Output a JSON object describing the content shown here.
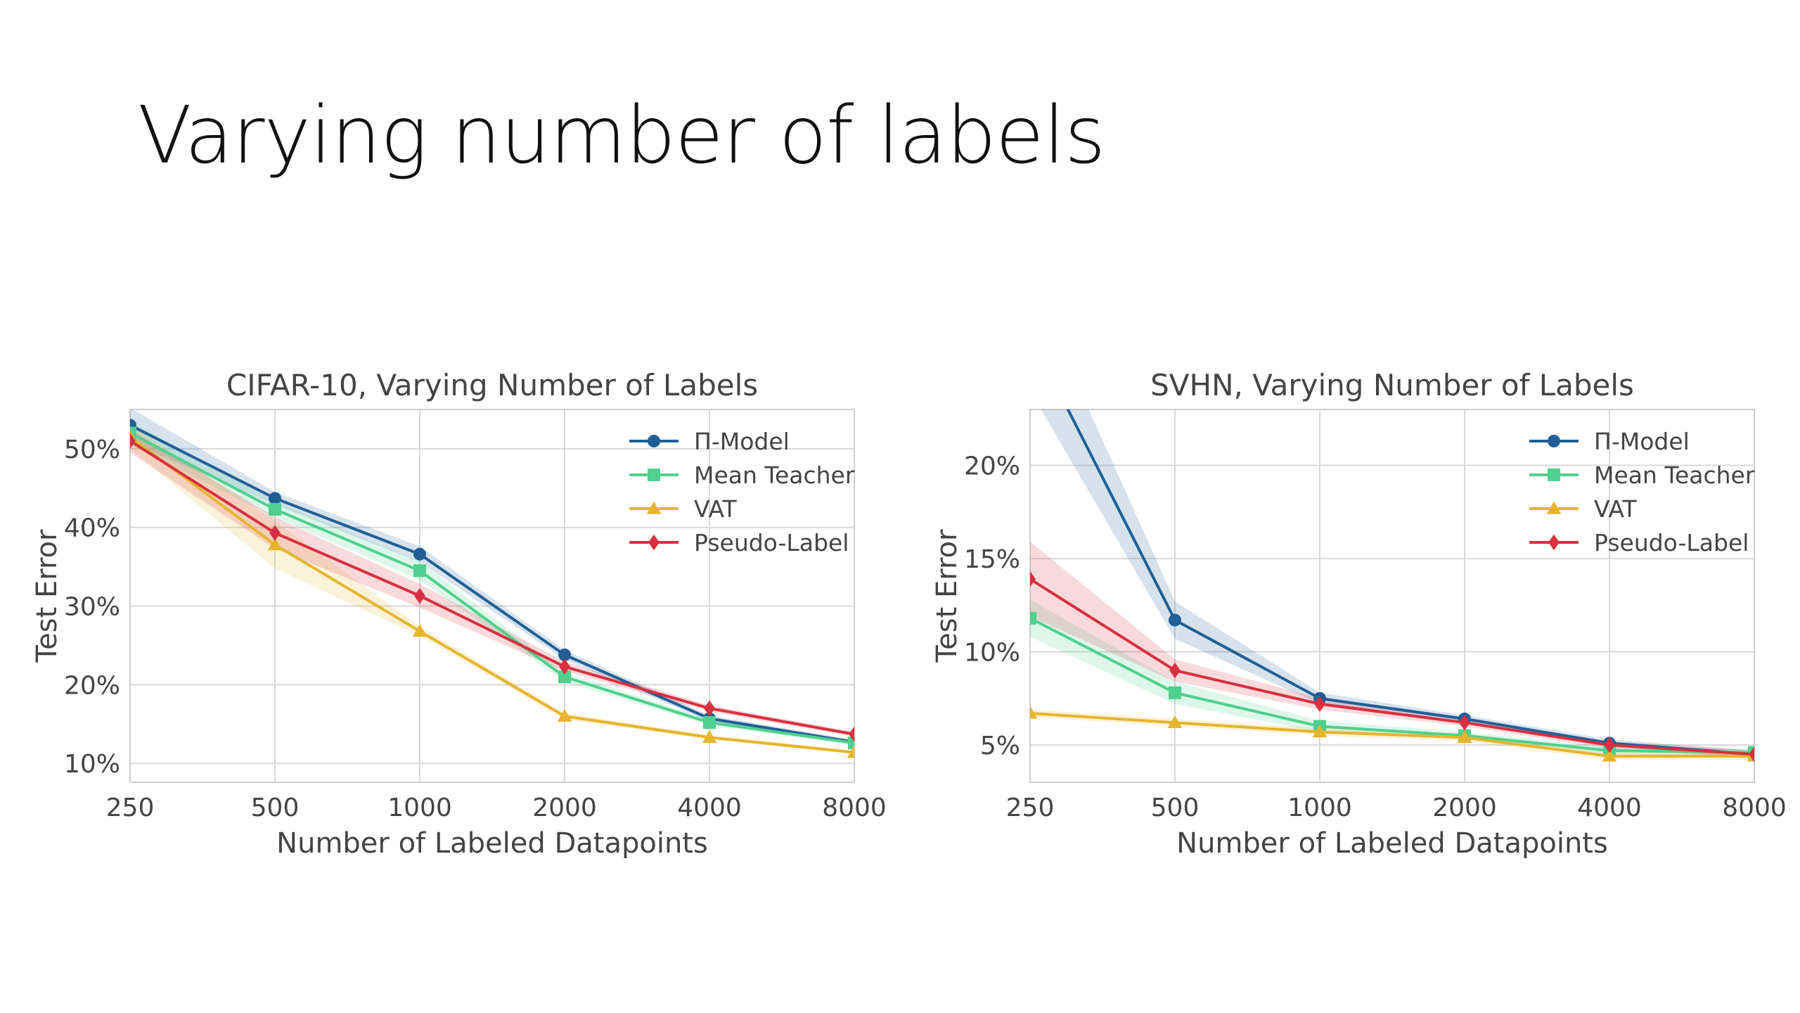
{
  "slide": {
    "title": "Varying number of labels"
  },
  "chart_data": [
    {
      "type": "line",
      "title": "CIFAR-10, Varying Number of Labels",
      "xlabel": "Number of Labeled Datapoints",
      "ylabel": "Test Error",
      "x": [
        250,
        500,
        1000,
        2000,
        4000,
        8000
      ],
      "x_scale": "log2",
      "xlim": [
        250,
        8000
      ],
      "ylim": [
        0.076,
        0.55
      ],
      "yticks": [
        0.1,
        0.2,
        0.3,
        0.4,
        0.5
      ],
      "ytick_labels": [
        "10%",
        "20%",
        "30%",
        "40%",
        "50%"
      ],
      "grid": true,
      "legend": "top-right",
      "series": [
        {
          "name": "Π-Model",
          "color": "#1f5f96",
          "marker": "circle",
          "values": [
            0.53,
            0.437,
            0.366,
            0.238,
            0.157,
            0.127
          ],
          "band": [
            0.022,
            0.008,
            0.01,
            0.006,
            0.004,
            0.003
          ]
        },
        {
          "name": "Mean Teacher",
          "color": "#4fd08e",
          "marker": "square",
          "values": [
            0.52,
            0.423,
            0.345,
            0.21,
            0.152,
            0.126
          ],
          "band": [
            0.015,
            0.01,
            0.012,
            0.006,
            0.004,
            0.003
          ]
        },
        {
          "name": "VAT",
          "color": "#e6b52e",
          "marker": "triangle",
          "values": [
            0.515,
            0.378,
            0.268,
            0.16,
            0.133,
            0.114
          ],
          "band": [
            0.015,
            0.03,
            0.006,
            0.004,
            0.003,
            0.002
          ]
        },
        {
          "name": "Pseudo-Label",
          "color": "#d83040",
          "marker": "diamond",
          "values": [
            0.51,
            0.393,
            0.313,
            0.223,
            0.17,
            0.137
          ],
          "band": [
            0.015,
            0.02,
            0.015,
            0.006,
            0.004,
            0.003
          ]
        }
      ]
    },
    {
      "type": "line",
      "title": "SVHN, Varying Number of Labels",
      "xlabel": "Number of Labeled Datapoints",
      "ylabel": "Test Error",
      "x": [
        250,
        500,
        1000,
        2000,
        4000,
        8000
      ],
      "x_scale": "log2",
      "xlim": [
        250,
        8000
      ],
      "ylim": [
        0.03,
        0.23
      ],
      "yticks": [
        0.05,
        0.1,
        0.15,
        0.2
      ],
      "ytick_labels": [
        "5%",
        "10%",
        "15%",
        "20%"
      ],
      "grid": true,
      "legend": "top-right",
      "series": [
        {
          "name": "Π-Model",
          "color": "#1f5f96",
          "marker": "circle",
          "values": [
            0.27,
            0.117,
            0.075,
            0.064,
            0.051,
            0.045
          ],
          "band": [
            0.03,
            0.01,
            0.003,
            0.002,
            0.002,
            0.002
          ]
        },
        {
          "name": "Mean Teacher",
          "color": "#4fd08e",
          "marker": "square",
          "values": [
            0.118,
            0.078,
            0.06,
            0.055,
            0.047,
            0.046
          ],
          "band": [
            0.01,
            0.006,
            0.003,
            0.002,
            0.002,
            0.002
          ]
        },
        {
          "name": "VAT",
          "color": "#e6b52e",
          "marker": "triangle",
          "values": [
            0.067,
            0.062,
            0.057,
            0.054,
            0.044,
            0.044
          ],
          "band": [
            0.002,
            0.002,
            0.002,
            0.002,
            0.002,
            0.002
          ]
        },
        {
          "name": "Pseudo-Label",
          "color": "#d83040",
          "marker": "diamond",
          "values": [
            0.139,
            0.09,
            0.072,
            0.062,
            0.05,
            0.045
          ],
          "band": [
            0.02,
            0.006,
            0.003,
            0.002,
            0.002,
            0.002
          ]
        }
      ]
    }
  ]
}
